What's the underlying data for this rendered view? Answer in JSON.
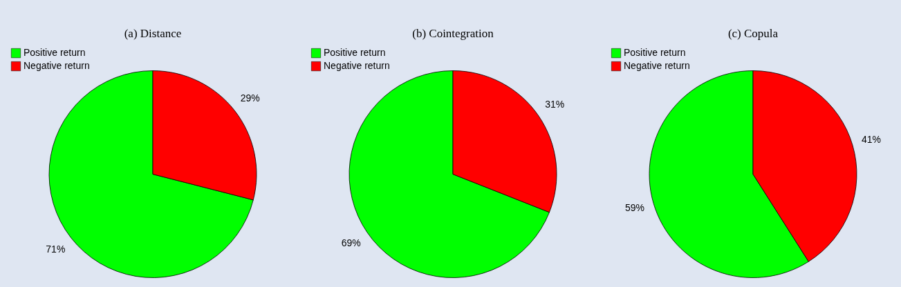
{
  "chart_data": [
    {
      "type": "pie",
      "title": "(a) Distance",
      "categories": [
        "Positive return",
        "Negative return"
      ],
      "values": [
        71,
        29
      ],
      "colors": [
        "#00ff00",
        "#ff0000"
      ],
      "value_labels": [
        "71%",
        "29%"
      ],
      "legend": "top left"
    },
    {
      "type": "pie",
      "title": "(b) Cointegration",
      "categories": [
        "Positive return",
        "Negative return"
      ],
      "values": [
        69,
        31
      ],
      "colors": [
        "#00ff00",
        "#ff0000"
      ],
      "value_labels": [
        "69%",
        "31%"
      ],
      "legend": "top left"
    },
    {
      "type": "pie",
      "title": "(c) Copula",
      "categories": [
        "Positive return",
        "Negative return"
      ],
      "values": [
        59,
        41
      ],
      "colors": [
        "#00ff00",
        "#ff0000"
      ],
      "value_labels": [
        "59%",
        "41%"
      ],
      "legend": "top left"
    }
  ]
}
